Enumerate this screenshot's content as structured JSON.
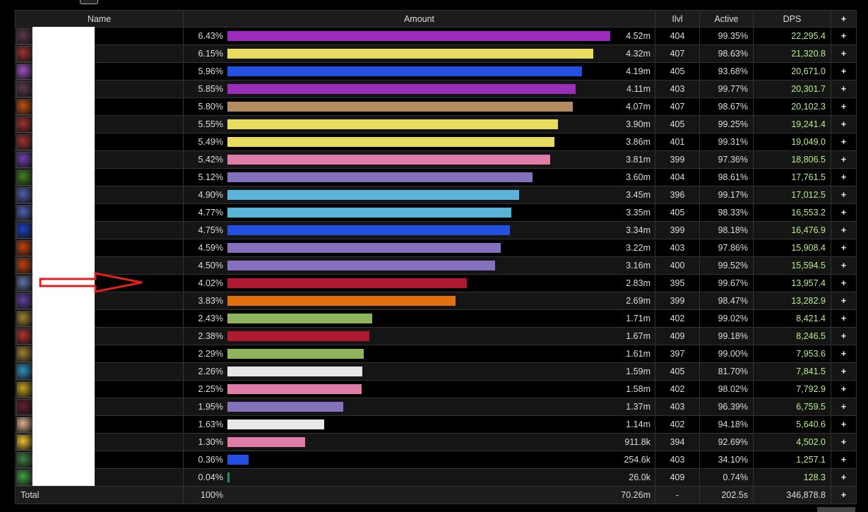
{
  "headers": {
    "name": "Name",
    "amount": "Amount",
    "ilvl": "Ilvl",
    "active": "Active",
    "dps": "DPS",
    "plus": "+"
  },
  "rows": [
    {
      "pct": "6.43%",
      "share": 6.43,
      "color": "#9b2dbd",
      "amount": "4.52m",
      "ilvl": "404",
      "active": "99.35%",
      "dps": "22,295.4",
      "icon": "#5a3a4a"
    },
    {
      "pct": "6.15%",
      "share": 6.15,
      "color": "#e8dc5e",
      "amount": "4.32m",
      "ilvl": "407",
      "active": "98.63%",
      "dps": "21,320.8",
      "icon": "#a03030"
    },
    {
      "pct": "5.96%",
      "share": 5.96,
      "color": "#2350e0",
      "amount": "4.19m",
      "ilvl": "405",
      "active": "93.68%",
      "dps": "20,671.0",
      "icon": "#a050c0"
    },
    {
      "pct": "5.85%",
      "share": 5.85,
      "color": "#9b2dbd",
      "amount": "4.11m",
      "ilvl": "403",
      "active": "99.77%",
      "dps": "20,301.7",
      "icon": "#5a3a4a"
    },
    {
      "pct": "5.80%",
      "share": 5.8,
      "color": "#b38c64",
      "amount": "4.07m",
      "ilvl": "407",
      "active": "98.67%",
      "dps": "20,102.3",
      "icon": "#c05010"
    },
    {
      "pct": "5.55%",
      "share": 5.55,
      "color": "#e8dc5e",
      "amount": "3.90m",
      "ilvl": "405",
      "active": "99.25%",
      "dps": "19,241.4",
      "icon": "#a03030"
    },
    {
      "pct": "5.49%",
      "share": 5.49,
      "color": "#e8dc5e",
      "amount": "3.86m",
      "ilvl": "401",
      "active": "99.31%",
      "dps": "19,049.0",
      "icon": "#a03030"
    },
    {
      "pct": "5.42%",
      "share": 5.42,
      "color": "#e07ca8",
      "amount": "3.81m",
      "ilvl": "399",
      "active": "97.36%",
      "dps": "18,806.5",
      "icon": "#7040b0"
    },
    {
      "pct": "5.12%",
      "share": 5.12,
      "color": "#8470bc",
      "amount": "3.60m",
      "ilvl": "404",
      "active": "98.61%",
      "dps": "17,761.5",
      "icon": "#408020"
    },
    {
      "pct": "4.90%",
      "share": 4.9,
      "color": "#5ab4d8",
      "amount": "3.45m",
      "ilvl": "396",
      "active": "99.17%",
      "dps": "17,012.5",
      "icon": "#5060b0"
    },
    {
      "pct": "4.77%",
      "share": 4.77,
      "color": "#5ab4d8",
      "amount": "3.35m",
      "ilvl": "405",
      "active": "98.33%",
      "dps": "16,553.2",
      "icon": "#5060b0"
    },
    {
      "pct": "4.75%",
      "share": 4.75,
      "color": "#2350e0",
      "amount": "3.34m",
      "ilvl": "399",
      "active": "98.18%",
      "dps": "16,476.9",
      "icon": "#2040c0"
    },
    {
      "pct": "4.59%",
      "share": 4.59,
      "color": "#8470bc",
      "amount": "3.22m",
      "ilvl": "403",
      "active": "97.86%",
      "dps": "15,908.4",
      "icon": "#c04010"
    },
    {
      "pct": "4.50%",
      "share": 4.5,
      "color": "#8470bc",
      "amount": "3.16m",
      "ilvl": "400",
      "active": "99.52%",
      "dps": "15,594.5",
      "icon": "#c04010"
    },
    {
      "pct": "4.02%",
      "share": 4.02,
      "color": "#b01a30",
      "amount": "2.83m",
      "ilvl": "395",
      "active": "99.67%",
      "dps": "13,957.4",
      "icon": "#6070a0"
    },
    {
      "pct": "3.83%",
      "share": 3.83,
      "color": "#e3700e",
      "amount": "2.69m",
      "ilvl": "399",
      "active": "98.47%",
      "dps": "13,282.9",
      "icon": "#6040a0"
    },
    {
      "pct": "2.43%",
      "share": 2.43,
      "color": "#8fb45e",
      "amount": "1.71m",
      "ilvl": "402",
      "active": "99.02%",
      "dps": "8,421.4",
      "icon": "#a08030"
    },
    {
      "pct": "2.38%",
      "share": 2.38,
      "color": "#b01a30",
      "amount": "1.67m",
      "ilvl": "409",
      "active": "99.18%",
      "dps": "8,246.5",
      "icon": "#b03030"
    },
    {
      "pct": "2.29%",
      "share": 2.29,
      "color": "#8fb45e",
      "amount": "1.61m",
      "ilvl": "397",
      "active": "99.00%",
      "dps": "7,953.6",
      "icon": "#a08030"
    },
    {
      "pct": "2.26%",
      "share": 2.26,
      "color": "#e8e8e8",
      "amount": "1.59m",
      "ilvl": "405",
      "active": "81.70%",
      "dps": "7,841.5",
      "icon": "#3090c0"
    },
    {
      "pct": "2.25%",
      "share": 2.25,
      "color": "#e07ca8",
      "amount": "1.58m",
      "ilvl": "402",
      "active": "98.02%",
      "dps": "7,792.9",
      "icon": "#c0a020"
    },
    {
      "pct": "1.95%",
      "share": 1.95,
      "color": "#8470bc",
      "amount": "1.37m",
      "ilvl": "403",
      "active": "96.39%",
      "dps": "6,759.5",
      "icon": "#602030"
    },
    {
      "pct": "1.63%",
      "share": 1.63,
      "color": "#e8e8e8",
      "amount": "1.14m",
      "ilvl": "402",
      "active": "94.18%",
      "dps": "5,640.6",
      "icon": "#e0b090"
    },
    {
      "pct": "1.30%",
      "share": 1.3,
      "color": "#e07ca8",
      "amount": "911.8k",
      "ilvl": "394",
      "active": "92.69%",
      "dps": "4,502.0",
      "icon": "#f0c030"
    },
    {
      "pct": "0.36%",
      "share": 0.36,
      "color": "#2350e0",
      "amount": "254.6k",
      "ilvl": "403",
      "active": "34.10%",
      "dps": "1,257.1",
      "icon": "#408040"
    },
    {
      "pct": "0.04%",
      "share": 0.04,
      "color": "#1a9070",
      "amount": "26.0k",
      "ilvl": "409",
      "active": "0.74%",
      "dps": "128.3",
      "icon": "#40a040"
    }
  ],
  "total": {
    "label": "Total",
    "pct": "100%",
    "amount": "70.26m",
    "ilvl": "-",
    "active": "202.5s",
    "dps": "346,878.8",
    "plus": "+"
  }
}
